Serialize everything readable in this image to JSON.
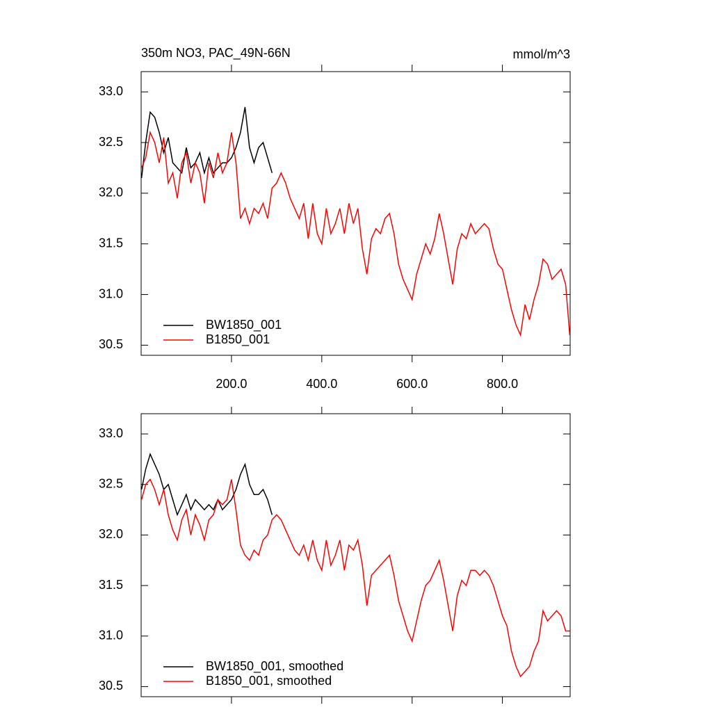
{
  "chart_data": [
    {
      "type": "line",
      "title": "350m NO3, PAC_49N-66N",
      "subtitle": "mmol/m^3",
      "xlim": [
        0,
        950
      ],
      "ylim": [
        30.4,
        33.2
      ],
      "xticks": [
        {
          "value": 200,
          "label": "200.0"
        },
        {
          "value": 400,
          "label": "400.0"
        },
        {
          "value": 600,
          "label": "600.0"
        },
        {
          "value": 800,
          "label": "800.0"
        }
      ],
      "yticks": [
        {
          "value": 30.5,
          "label": "30.5"
        },
        {
          "value": 31,
          "label": "31.0"
        },
        31.5,
        {
          "value": 32,
          "label": "32.0"
        },
        32.5,
        {
          "value": 33,
          "label": "33.0"
        }
      ],
      "legend": "lower left",
      "x": [
        1,
        10,
        20,
        30,
        40,
        50,
        60,
        70,
        80,
        90,
        100,
        110,
        120,
        130,
        140,
        150,
        160,
        170,
        180,
        190,
        200,
        210,
        220,
        230,
        240,
        250,
        260,
        270,
        280,
        290,
        300,
        310,
        320,
        330,
        340,
        350,
        360,
        370,
        380,
        390,
        400,
        410,
        420,
        430,
        440,
        450,
        460,
        470,
        480,
        490,
        500,
        510,
        520,
        530,
        540,
        550,
        560,
        570,
        580,
        590,
        600,
        610,
        620,
        630,
        640,
        650,
        660,
        670,
        680,
        690,
        700,
        710,
        720,
        730,
        740,
        750,
        760,
        770,
        780,
        790,
        800,
        810,
        820,
        830,
        840,
        850,
        860,
        870,
        880,
        890,
        900,
        910,
        920,
        930,
        940,
        949
      ],
      "series": [
        {
          "name": "BW1850_001",
          "color": "#000000",
          "values": [
            32.15,
            32.5,
            32.8,
            32.75,
            32.6,
            32.4,
            32.55,
            32.3,
            32.25,
            32.2,
            32.45,
            32.25,
            32.3,
            32.4,
            32.2,
            32.35,
            32.2,
            32.25,
            32.3,
            32.3,
            32.35,
            32.45,
            32.6,
            32.85,
            32.45,
            32.3,
            32.45,
            32.5,
            32.35,
            32.2,
            null,
            null,
            null,
            null,
            null,
            null,
            null,
            null,
            null,
            null,
            null,
            null,
            null,
            null,
            null,
            null,
            null,
            null,
            null,
            null,
            null,
            null,
            null,
            null,
            null,
            null,
            null,
            null,
            null,
            null,
            null,
            null,
            null,
            null,
            null,
            null,
            null,
            null,
            null,
            null,
            null,
            null,
            null,
            null,
            null,
            null,
            null,
            null,
            null,
            null,
            null,
            null,
            null,
            null,
            null,
            null,
            null,
            null,
            null,
            null,
            null,
            null,
            null,
            null,
            null,
            null
          ]
        },
        {
          "name": "B1850_001",
          "color": "#ff0000",
          "values": [
            32.25,
            32.35,
            32.6,
            32.5,
            32.3,
            32.55,
            32.1,
            32.2,
            31.95,
            32.3,
            32.4,
            32.1,
            32.3,
            32.2,
            31.9,
            32.3,
            32.15,
            32.4,
            32.2,
            32.3,
            32.6,
            32.3,
            31.75,
            31.85,
            31.7,
            31.85,
            31.8,
            31.9,
            31.75,
            32.05,
            32.1,
            32.2,
            32.1,
            31.95,
            31.85,
            31.75,
            31.9,
            31.55,
            31.9,
            31.6,
            31.5,
            31.85,
            31.6,
            31.7,
            31.85,
            31.6,
            31.9,
            31.7,
            31.85,
            31.45,
            31.2,
            31.55,
            31.65,
            31.6,
            31.75,
            31.8,
            31.6,
            31.3,
            31.15,
            31.05,
            30.95,
            31.2,
            31.35,
            31.5,
            31.4,
            31.55,
            31.8,
            31.6,
            31.35,
            31.1,
            31.45,
            31.6,
            31.55,
            31.7,
            31.6,
            31.65,
            31.7,
            31.65,
            31.45,
            31.3,
            31.25,
            31.05,
            30.85,
            30.7,
            30.6,
            30.9,
            30.75,
            30.95,
            31.1,
            31.35,
            31.3,
            31.15,
            31.2,
            31.25,
            31.1,
            30.6
          ]
        }
      ]
    },
    {
      "type": "line",
      "xlim": [
        0,
        950
      ],
      "ylim": [
        30.4,
        33.2
      ],
      "xticks": [
        200,
        400,
        600,
        800
      ],
      "yticks": [
        {
          "value": 30.5,
          "label": "30.5"
        },
        {
          "value": 31,
          "label": "31.0"
        },
        31.5,
        {
          "value": 32,
          "label": "32.0"
        },
        32.5,
        {
          "value": 33,
          "label": "33.0"
        }
      ],
      "legend": "lower left",
      "x": [
        1,
        10,
        20,
        30,
        40,
        50,
        60,
        70,
        80,
        90,
        100,
        110,
        120,
        130,
        140,
        150,
        160,
        170,
        180,
        190,
        200,
        210,
        220,
        230,
        240,
        250,
        260,
        270,
        280,
        290,
        300,
        310,
        320,
        330,
        340,
        350,
        360,
        370,
        380,
        390,
        400,
        410,
        420,
        430,
        440,
        450,
        460,
        470,
        480,
        490,
        500,
        510,
        520,
        530,
        540,
        550,
        560,
        570,
        580,
        590,
        600,
        610,
        620,
        630,
        640,
        650,
        660,
        670,
        680,
        690,
        700,
        710,
        720,
        730,
        740,
        750,
        760,
        770,
        780,
        790,
        800,
        810,
        820,
        830,
        840,
        850,
        860,
        870,
        880,
        890,
        900,
        910,
        920,
        930,
        940,
        949
      ],
      "series": [
        {
          "name": "BW1850_001, smoothed",
          "color": "#000000",
          "values": [
            32.45,
            32.65,
            32.8,
            32.7,
            32.6,
            32.45,
            32.5,
            32.35,
            32.2,
            32.3,
            32.4,
            32.25,
            32.35,
            32.3,
            32.25,
            32.3,
            32.25,
            32.35,
            32.25,
            32.3,
            32.35,
            32.45,
            32.6,
            32.7,
            32.5,
            32.4,
            32.4,
            32.45,
            32.35,
            32.2,
            null,
            null,
            null,
            null,
            null,
            null,
            null,
            null,
            null,
            null,
            null,
            null,
            null,
            null,
            null,
            null,
            null,
            null,
            null,
            null,
            null,
            null,
            null,
            null,
            null,
            null,
            null,
            null,
            null,
            null,
            null,
            null,
            null,
            null,
            null,
            null,
            null,
            null,
            null,
            null,
            null,
            null,
            null,
            null,
            null,
            null,
            null,
            null,
            null,
            null,
            null,
            null,
            null,
            null,
            null,
            null,
            null,
            null,
            null,
            null,
            null,
            null,
            null,
            null,
            null,
            null
          ]
        },
        {
          "name": "B1850_001, smoothed",
          "color": "#ff0000",
          "values": [
            32.35,
            32.5,
            32.55,
            32.45,
            32.3,
            32.45,
            32.2,
            32.05,
            31.95,
            32.15,
            32.25,
            32.0,
            32.2,
            32.1,
            31.95,
            32.15,
            32.2,
            32.35,
            32.3,
            32.35,
            32.55,
            32.25,
            31.9,
            31.8,
            31.75,
            31.85,
            31.8,
            31.95,
            32.0,
            32.15,
            32.2,
            32.15,
            32.05,
            31.95,
            31.85,
            31.8,
            31.9,
            31.75,
            31.95,
            31.75,
            31.65,
            31.95,
            31.7,
            31.8,
            31.95,
            31.65,
            31.9,
            31.85,
            31.95,
            31.7,
            31.3,
            31.6,
            31.65,
            31.7,
            31.75,
            31.8,
            31.6,
            31.35,
            31.2,
            31.05,
            30.95,
            31.15,
            31.35,
            31.5,
            31.55,
            31.65,
            31.75,
            31.55,
            31.3,
            31.05,
            31.4,
            31.55,
            31.5,
            31.65,
            31.65,
            31.6,
            31.65,
            31.6,
            31.5,
            31.35,
            31.2,
            31.1,
            30.85,
            30.7,
            30.6,
            30.65,
            30.7,
            30.85,
            30.95,
            31.25,
            31.15,
            31.2,
            31.25,
            31.2,
            31.05,
            31.05
          ]
        }
      ]
    }
  ]
}
